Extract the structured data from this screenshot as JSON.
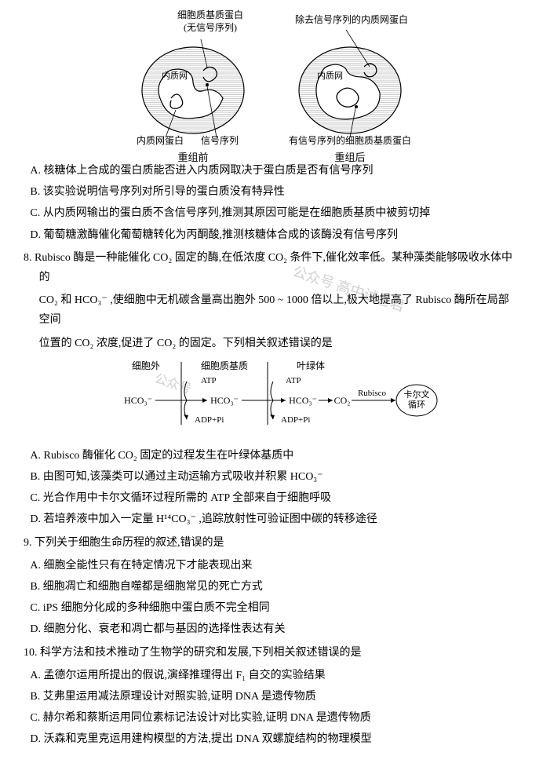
{
  "diagram": {
    "left": {
      "top_label": "细胞质基质蛋白\n(无信号序列)",
      "er_label": "内质网",
      "bottom_left": "内质网蛋白",
      "bottom_right": "信号序列",
      "caption": "重组前"
    },
    "right": {
      "top_label": "除去信号序列的内质网蛋白",
      "er_label": "内质网",
      "bottom": "有信号序列的细胞质基质蛋白",
      "caption": "重组后"
    },
    "colors": {
      "outline": "#000000",
      "fill_lines": "#808080",
      "bg": "#ffffff"
    }
  },
  "q7_options": {
    "A": "A. 核糖体上合成的蛋白质能否进入内质网取决于蛋白质是否有信号序列",
    "B": "B. 该实验说明信号序列对所引导的蛋白质没有特异性",
    "C": "C. 从内质网输出的蛋白质不含信号序列,推测其原因可能是在细胞质基质中被剪切掉",
    "D": "D. 葡萄糖激酶催化葡萄糖转化为丙酮酸,推测核糖体合成的该酶没有信号序列"
  },
  "q8": {
    "stem1": "8. Rubisco 酶是一种能催化 CO₂ 固定的酶,在低浓度 CO₂ 条件下,催化效率低。某种藻类能够吸收水体中的",
    "stem2": "CO₂ 和 HCO₃⁻ ,使细胞中无机碳含量高出胞外 500 ~ 1000 倍以上,极大地提高了 Rubisco 酶所在局部空间",
    "stem3": "位置的 CO₂ 浓度,促进了 CO₂ 的固定。下列相关叙述错误的是",
    "flow": {
      "col_labels": [
        "细胞外",
        "细胞质基质",
        "叶绿体"
      ],
      "species": "HCO₃⁻",
      "atp": "ATP",
      "adppi": "ADP+Pi",
      "co2": "CO₂",
      "rubisco": "Rubisco",
      "calvin": "卡尔文\n循环"
    },
    "options": {
      "A": "A. Rubisco 酶催化 CO₂ 固定的过程发生在叶绿体基质中",
      "B": "B. 由图可知,该藻类可以通过主动运输方式吸收并积累 HCO₃⁻",
      "C": "C. 光合作用中卡尔文循环过程所需的 ATP 全部来自于细胞呼吸",
      "D": "D. 若培养液中加入一定量 H¹⁴CO₃⁻ ,追踪放射性可验证图中碳的转移途径"
    }
  },
  "q9": {
    "stem": "9. 下列关于细胞生命历程的叙述,错误的是",
    "options": {
      "A": "A. 细胞全能性只有在特定情况下才能表现出来",
      "B": "B. 细胞凋亡和细胞自噬都是细胞常见的死亡方式",
      "C": "C. iPS 细胞分化成的多种细胞中蛋白质不完全相同",
      "D": "D. 细胞分化、衰老和凋亡都与基因的选择性表达有关"
    }
  },
  "q10": {
    "stem": "10. 科学方法和技术推动了生物学的研究和发展,下列相关叙述错误的是",
    "options": {
      "A": "A. 孟德尔运用所提出的假说,演绎推理得出 F₁ 自交的实验结果",
      "B": "B. 艾弗里运用减法原理设计对照实验,证明 DNA 是遗传物质",
      "C": "C. 赫尔希和蔡斯运用同位素标记法设计对比实验,证明 DNA 是遗传物质",
      "D": "D. 沃森和克里克运用建构模型的方法,提出 DNA 双螺旋结构的物理模型"
    }
  },
  "watermark": "公众号 高中试卷君"
}
